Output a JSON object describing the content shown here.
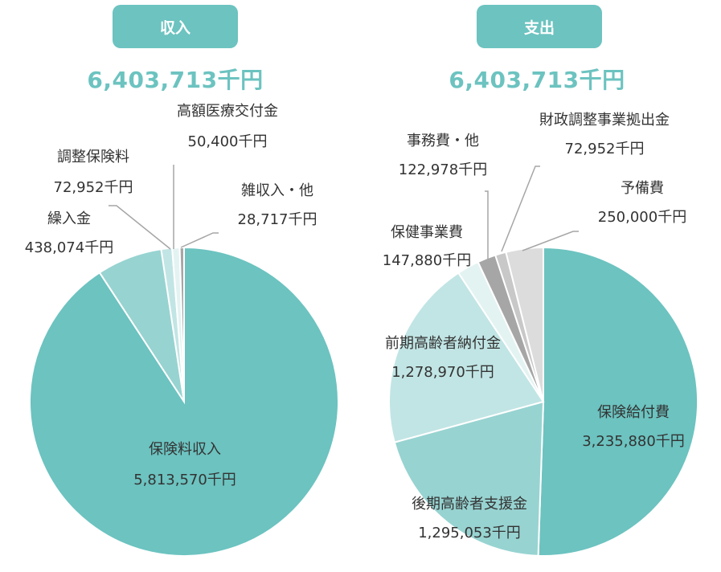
{
  "colors": {
    "accent": "#6cc3c0",
    "badge_text": "#ffffff"
  },
  "chart_data": [
    {
      "type": "pie",
      "title": "収入",
      "total_label": "6,403,713千円",
      "series": [
        {
          "name": "保険料収入",
          "value": 5813570,
          "value_label": "5,813,570千円",
          "color": "#6cc3c0"
        },
        {
          "name": "繰入金",
          "value": 438074,
          "value_label": "438,074千円",
          "color": "#97d3d1"
        },
        {
          "name": "調整保険料",
          "value": 72952,
          "value_label": "72,952千円",
          "color": "#c1e5e4"
        },
        {
          "name": "高額医療交付金",
          "value": 50400,
          "value_label": "50,400千円",
          "color": "#e3f3f2"
        },
        {
          "name": "雑収入・他",
          "value": 28717,
          "value_label": "28,717千円",
          "color": "#a6a6a6"
        }
      ]
    },
    {
      "type": "pie",
      "title": "支出",
      "total_label": "6,403,713千円",
      "series": [
        {
          "name": "保険給付費",
          "value": 3235880,
          "value_label": "3,235,880千円",
          "color": "#6cc3c0"
        },
        {
          "name": "後期高齢者支援金",
          "value": 1295053,
          "value_label": "1,295,053千円",
          "color": "#97d3d1"
        },
        {
          "name": "前期高齢者納付金",
          "value": 1278970,
          "value_label": "1,278,970千円",
          "color": "#c1e5e4"
        },
        {
          "name": "保健事業費",
          "value": 147880,
          "value_label": "147,880千円",
          "color": "#e3f3f2"
        },
        {
          "name": "事務費・他",
          "value": 122978,
          "value_label": "122,978千円",
          "color": "#a6a6a6"
        },
        {
          "name": "財政調整事業拠出金",
          "value": 72952,
          "value_label": "72,952千円",
          "color": "#c8c8c8"
        },
        {
          "name": "予備費",
          "value": 250000,
          "value_label": "250,000千円",
          "color": "#dcdcdc"
        }
      ]
    }
  ]
}
